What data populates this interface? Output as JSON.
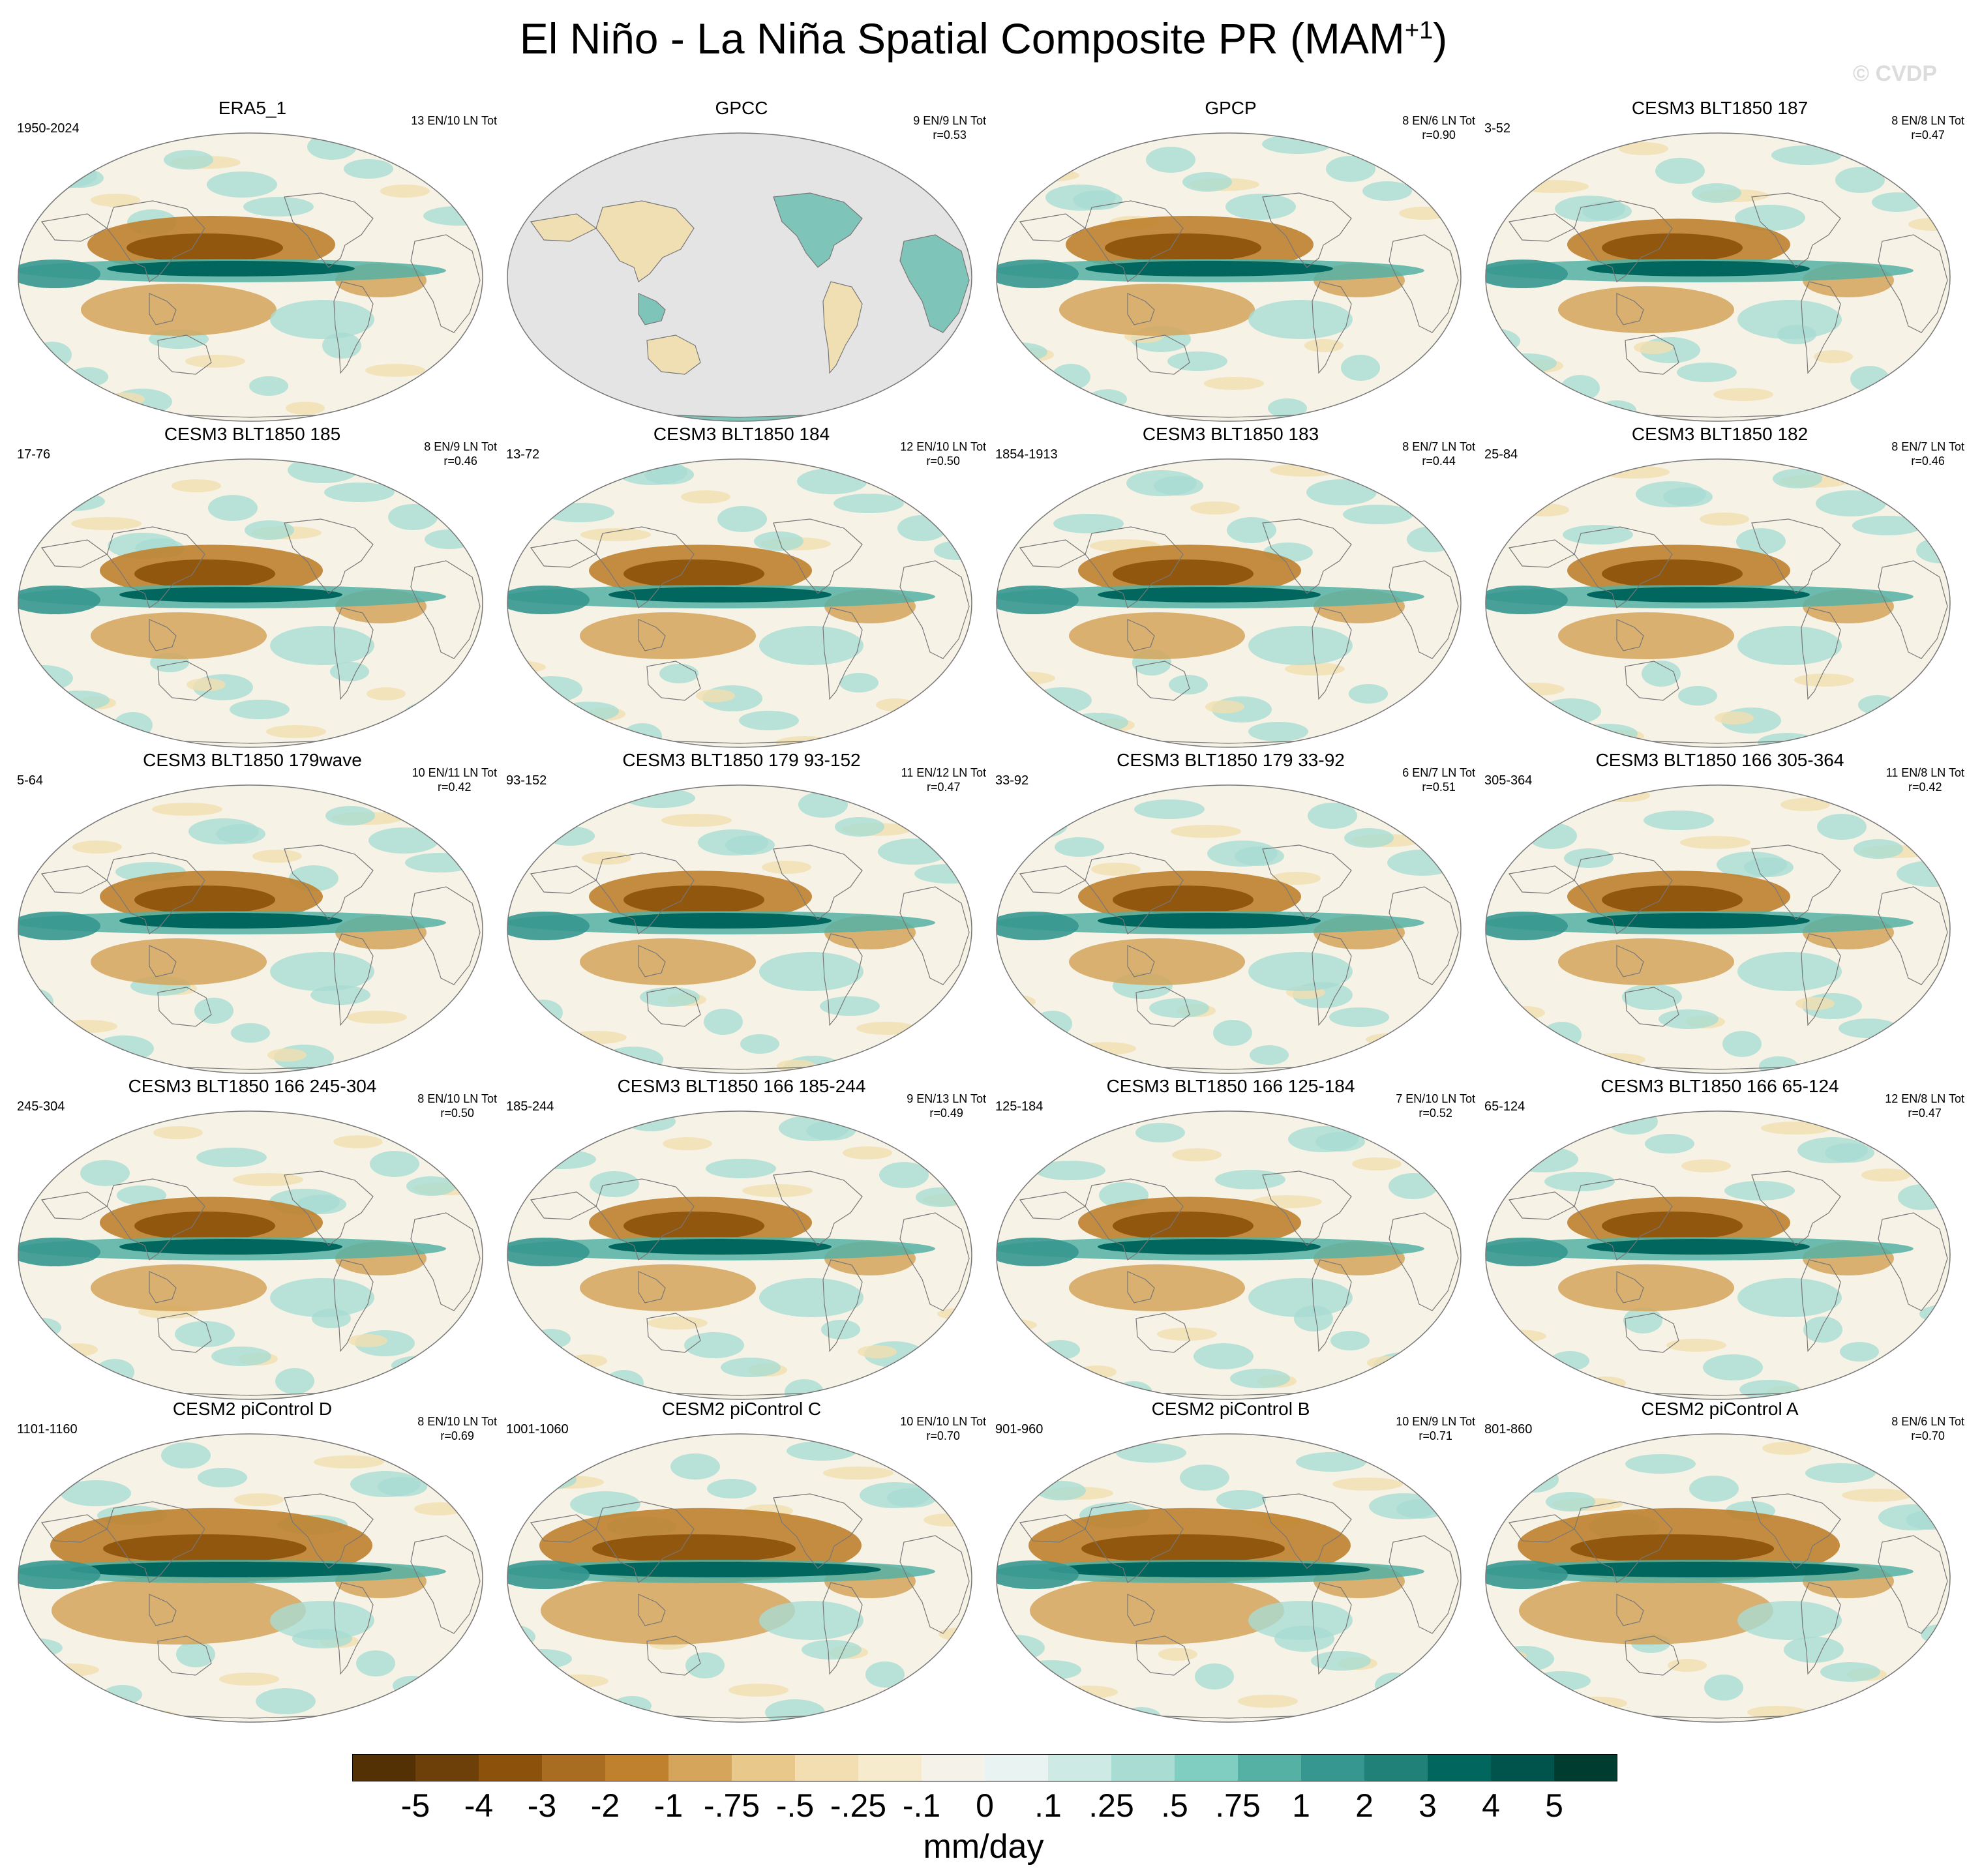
{
  "figure": {
    "title_main": "El Niño - La Niña Spatial Composite PR (MAM",
    "title_sup": "+1",
    "title_close": ")",
    "watermark": "© CVDP",
    "units": "mm/day"
  },
  "colors": {
    "land_gray": "#e4e4e4",
    "map_outline": "#777777",
    "dry": "#8c5a1a",
    "wet": "#0a6e62"
  },
  "panels": [
    {
      "title": "ERA5_1",
      "range": "1950-2024",
      "counts": "13 EN/10 LN Tot",
      "r": "",
      "style": "obs"
    },
    {
      "title": "GPCC",
      "range": "",
      "counts": "9 EN/9 LN Tot",
      "r": "r=0.53",
      "style": "gray"
    },
    {
      "title": "GPCP",
      "range": "",
      "counts": "8 EN/6 LN Tot",
      "r": "r=0.90",
      "style": "obs"
    },
    {
      "title": "CESM3 BLT1850 187",
      "range": "3-52",
      "counts": "8 EN/8 LN Tot",
      "r": "r=0.47",
      "style": "model"
    },
    {
      "title": "CESM3 BLT1850 185",
      "range": "17-76",
      "counts": "8 EN/9 LN Tot",
      "r": "r=0.46",
      "style": "model"
    },
    {
      "title": "CESM3 BLT1850 184",
      "range": "13-72",
      "counts": "12 EN/10 LN Tot",
      "r": "r=0.50",
      "style": "model"
    },
    {
      "title": "CESM3 BLT1850 183",
      "range": "1854-1913",
      "counts": "8 EN/7 LN Tot",
      "r": "r=0.44",
      "style": "model"
    },
    {
      "title": "CESM3 BLT1850 182",
      "range": "25-84",
      "counts": "8 EN/7 LN Tot",
      "r": "r=0.46",
      "style": "model"
    },
    {
      "title": "CESM3 BLT1850 179wave",
      "range": "5-64",
      "counts": "10 EN/11 LN Tot",
      "r": "r=0.42",
      "style": "model"
    },
    {
      "title": "CESM3 BLT1850 179 93-152",
      "range": "93-152",
      "counts": "11 EN/12 LN Tot",
      "r": "r=0.47",
      "style": "model"
    },
    {
      "title": "CESM3 BLT1850 179 33-92",
      "range": "33-92",
      "counts": "6 EN/7 LN Tot",
      "r": "r=0.51",
      "style": "model"
    },
    {
      "title": "CESM3 BLT1850 166 305-364",
      "range": "305-364",
      "counts": "11 EN/8 LN Tot",
      "r": "r=0.42",
      "style": "model"
    },
    {
      "title": "CESM3 BLT1850 166 245-304",
      "range": "245-304",
      "counts": "8 EN/10 LN Tot",
      "r": "r=0.50",
      "style": "model"
    },
    {
      "title": "CESM3 BLT1850 166 185-244",
      "range": "185-244",
      "counts": "9 EN/13 LN Tot",
      "r": "r=0.49",
      "style": "model"
    },
    {
      "title": "CESM3 BLT1850 166 125-184",
      "range": "125-184",
      "counts": "7 EN/10 LN Tot",
      "r": "r=0.52",
      "style": "model"
    },
    {
      "title": "CESM3 BLT1850 166 65-124",
      "range": "65-124",
      "counts": "12 EN/8 LN Tot",
      "r": "r=0.47",
      "style": "model"
    },
    {
      "title": "CESM2 piControl D",
      "range": "1101-1160",
      "counts": "8 EN/10 LN Tot",
      "r": "r=0.69",
      "style": "strong"
    },
    {
      "title": "CESM2 piControl C",
      "range": "1001-1060",
      "counts": "10 EN/10 LN Tot",
      "r": "r=0.70",
      "style": "strong"
    },
    {
      "title": "CESM2 piControl B",
      "range": "901-960",
      "counts": "10 EN/9 LN Tot",
      "r": "r=0.71",
      "style": "strong"
    },
    {
      "title": "CESM2 piControl A",
      "range": "801-860",
      "counts": "8 EN/6 LN Tot",
      "r": "r=0.70",
      "style": "strong"
    }
  ],
  "colorbar": {
    "colors": [
      "#543005",
      "#6e4009",
      "#8c510a",
      "#a96d22",
      "#bf812d",
      "#d4a55a",
      "#e8c98b",
      "#f2deb0",
      "#f6ebcd",
      "#f5f2ea",
      "#e9f3f1",
      "#cdeae5",
      "#a9dcd3",
      "#80cdc1",
      "#55b1a3",
      "#35978f",
      "#1f8178",
      "#01665e",
      "#00544b",
      "#003c30"
    ],
    "labels": [
      "-5",
      "-4",
      "-3",
      "-2",
      "-1",
      "-.75",
      "-.5",
      "-.25",
      "-.1",
      "0",
      ".1",
      ".25",
      ".5",
      ".75",
      "1",
      "2",
      "3",
      "4",
      "5"
    ]
  }
}
